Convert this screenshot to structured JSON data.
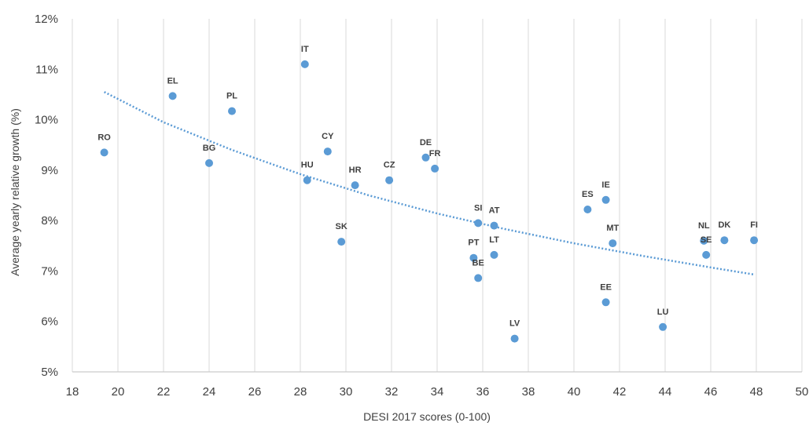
{
  "chart_data": {
    "type": "scatter",
    "xlabel": "DESI 2017 scores (0-100)",
    "ylabel": "Average yearly relative growth (%)",
    "xlim": [
      18,
      50
    ],
    "ylim": [
      5,
      12
    ],
    "x_ticks": [
      18,
      20,
      22,
      24,
      26,
      28,
      30,
      32,
      34,
      36,
      38,
      40,
      42,
      44,
      46,
      48,
      50
    ],
    "x_tick_labels": [
      "18",
      "20",
      "22",
      "24",
      "26",
      "28",
      "30",
      "32",
      "34",
      "36",
      "38",
      "40",
      "42",
      "44",
      "46",
      "48",
      "50"
    ],
    "y_ticks": [
      5,
      6,
      7,
      8,
      9,
      10,
      11,
      12
    ],
    "y_tick_labels": [
      "5%",
      "6%",
      "7%",
      "8%",
      "9%",
      "10%",
      "11%",
      "12%"
    ],
    "grid": "vertical",
    "marker_color": "#5b9bd5",
    "trendline_color": "#5b9bd5",
    "points": [
      {
        "label": "RO",
        "x": 19.4,
        "y": 9.35
      },
      {
        "label": "EL",
        "x": 22.4,
        "y": 10.47
      },
      {
        "label": "BG",
        "x": 24.0,
        "y": 9.14
      },
      {
        "label": "PL",
        "x": 25.0,
        "y": 10.17
      },
      {
        "label": "IT",
        "x": 28.2,
        "y": 11.1
      },
      {
        "label": "HU",
        "x": 28.3,
        "y": 8.8
      },
      {
        "label": "CY",
        "x": 29.2,
        "y": 9.37
      },
      {
        "label": "SK",
        "x": 29.8,
        "y": 7.58
      },
      {
        "label": "HR",
        "x": 30.4,
        "y": 8.7
      },
      {
        "label": "CZ",
        "x": 31.9,
        "y": 8.8
      },
      {
        "label": "DE",
        "x": 33.5,
        "y": 9.25
      },
      {
        "label": "FR",
        "x": 33.9,
        "y": 9.03
      },
      {
        "label": "PT",
        "x": 35.6,
        "y": 7.26
      },
      {
        "label": "SI",
        "x": 35.8,
        "y": 7.95
      },
      {
        "label": "BE",
        "x": 35.8,
        "y": 6.86
      },
      {
        "label": "AT",
        "x": 36.5,
        "y": 7.9
      },
      {
        "label": "LT",
        "x": 36.5,
        "y": 7.32
      },
      {
        "label": "LV",
        "x": 37.4,
        "y": 5.66
      },
      {
        "label": "ES",
        "x": 40.6,
        "y": 8.22
      },
      {
        "label": "IE",
        "x": 41.4,
        "y": 8.41
      },
      {
        "label": "EE",
        "x": 41.4,
        "y": 6.38
      },
      {
        "label": "MT",
        "x": 41.7,
        "y": 7.55
      },
      {
        "label": "LU",
        "x": 43.9,
        "y": 5.89
      },
      {
        "label": "NL",
        "x": 45.7,
        "y": 7.6
      },
      {
        "label": "SE",
        "x": 45.8,
        "y": 7.32
      },
      {
        "label": "DK",
        "x": 46.6,
        "y": 7.61
      },
      {
        "label": "FI",
        "x": 47.9,
        "y": 7.61
      }
    ],
    "trendline": {
      "type": "power",
      "x": [
        19.4,
        22,
        25,
        28,
        31,
        34,
        37,
        40,
        43,
        46,
        47.9
      ],
      "y": [
        10.55,
        9.95,
        9.4,
        8.92,
        8.5,
        8.14,
        7.83,
        7.55,
        7.3,
        7.07,
        6.93
      ]
    }
  }
}
